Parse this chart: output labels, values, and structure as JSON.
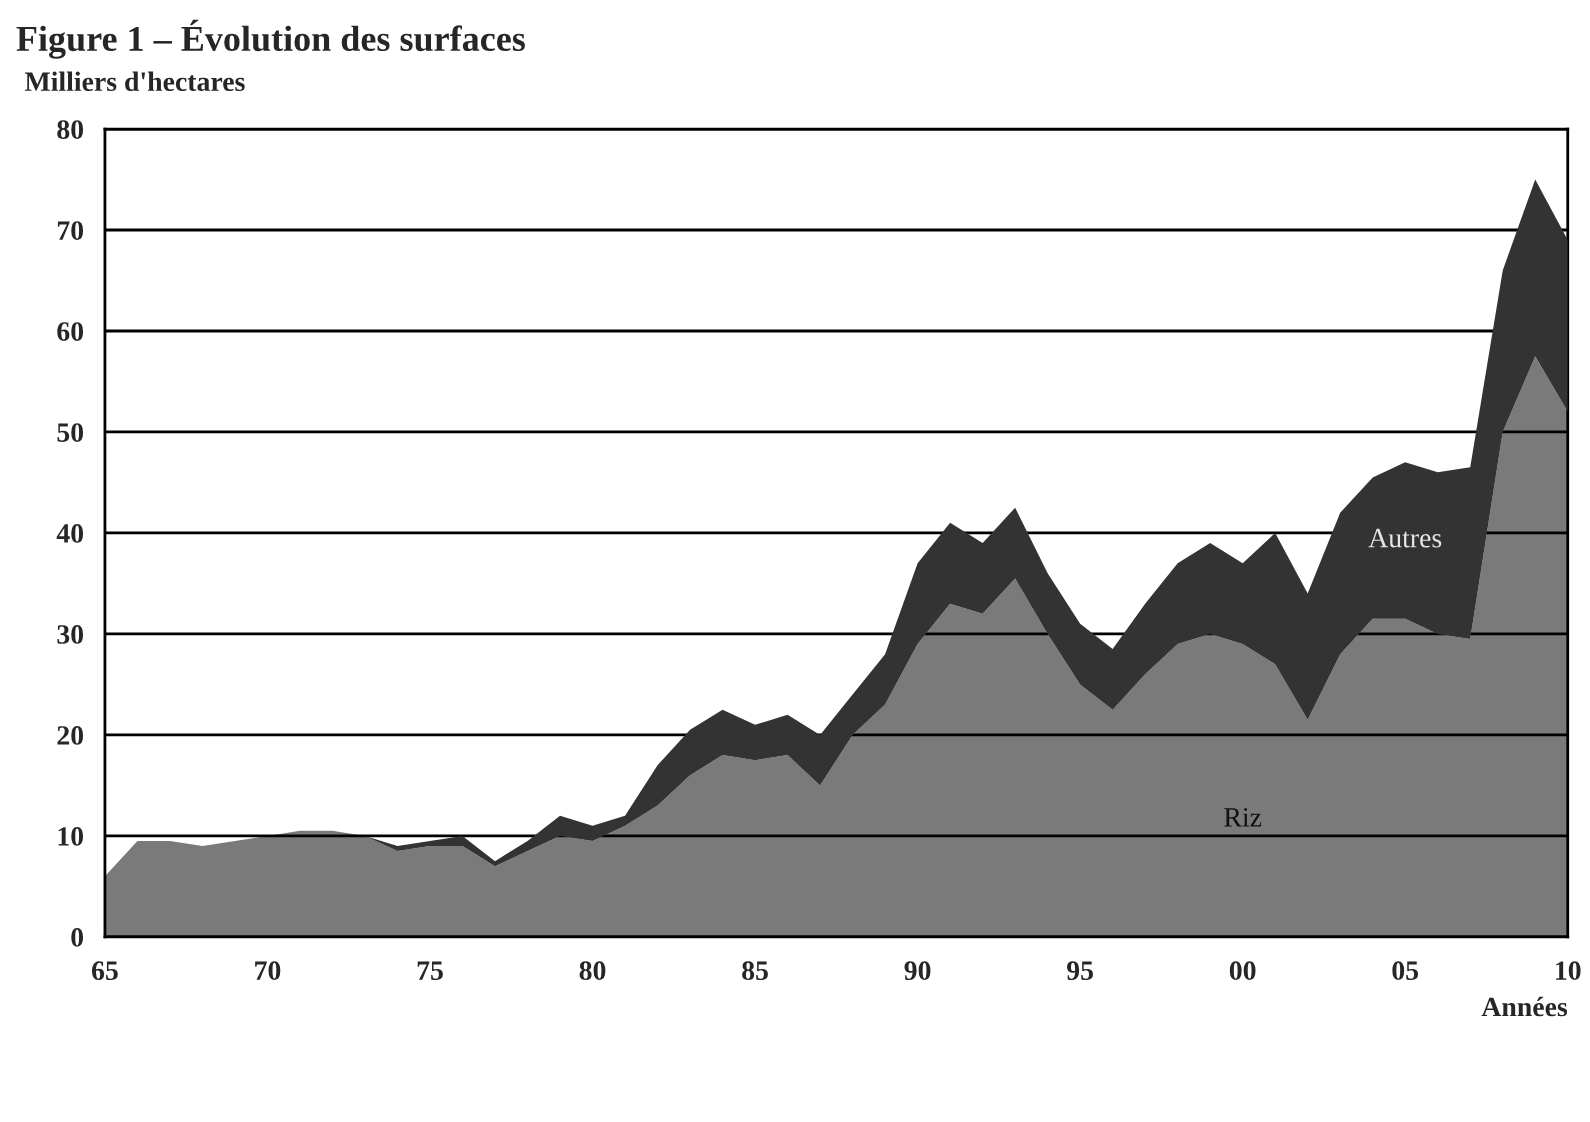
{
  "chart_data": {
    "type": "area",
    "stacked": true,
    "title": "Figure 1 – Évolution des surfaces",
    "ylabel": "Milliers d'hectares",
    "xlabel": "Années",
    "x": [
      1965,
      1966,
      1967,
      1968,
      1969,
      1970,
      1971,
      1972,
      1973,
      1974,
      1975,
      1976,
      1977,
      1978,
      1979,
      1980,
      1981,
      1982,
      1983,
      1984,
      1985,
      1986,
      1987,
      1988,
      1989,
      1990,
      1991,
      1992,
      1993,
      1994,
      1995,
      1996,
      1997,
      1998,
      1999,
      2000,
      2001,
      2002,
      2003,
      2004,
      2005,
      2006,
      2007,
      2008,
      2009,
      2010
    ],
    "series": [
      {
        "name": "Riz",
        "color": "#7a7a7a",
        "values": [
          6,
          9.5,
          9.5,
          9,
          9.5,
          10,
          10.5,
          10.5,
          10,
          8.5,
          9,
          9,
          7,
          8.5,
          10,
          9.5,
          11,
          13,
          16,
          18,
          17.5,
          18,
          15,
          20,
          23,
          29,
          33,
          32,
          35.5,
          30,
          25,
          22.5,
          26,
          29,
          30,
          29,
          27,
          21.5,
          28,
          31.5,
          31.5,
          30,
          29.5,
          50,
          57.5,
          52
        ]
      },
      {
        "name": "Autres",
        "color": "#333333",
        "values": [
          0,
          0,
          0,
          0,
          0,
          0,
          0,
          0,
          0,
          0.5,
          0.5,
          1,
          0.5,
          1,
          2,
          1.5,
          1,
          4,
          4.5,
          4.5,
          3.5,
          4,
          5,
          4,
          5,
          8,
          8,
          7,
          7,
          6,
          6,
          6,
          7,
          8,
          9,
          8,
          13,
          12.5,
          14,
          14,
          15.5,
          16,
          17,
          16,
          17.5,
          17
        ]
      }
    ],
    "xlim": [
      1965,
      2010
    ],
    "ylim": [
      0,
      80
    ],
    "xticks": [
      {
        "value": 1965,
        "label": "65"
      },
      {
        "value": 1970,
        "label": "70"
      },
      {
        "value": 1975,
        "label": "75"
      },
      {
        "value": 1980,
        "label": "80"
      },
      {
        "value": 1985,
        "label": "85"
      },
      {
        "value": 1990,
        "label": "90"
      },
      {
        "value": 1995,
        "label": "95"
      },
      {
        "value": 2000,
        "label": "00"
      },
      {
        "value": 2005,
        "label": "05"
      },
      {
        "value": 2010,
        "label": "10"
      }
    ],
    "yticks": [
      0,
      10,
      20,
      30,
      40,
      50,
      60,
      70,
      80
    ],
    "grid": "y",
    "legend": false
  }
}
